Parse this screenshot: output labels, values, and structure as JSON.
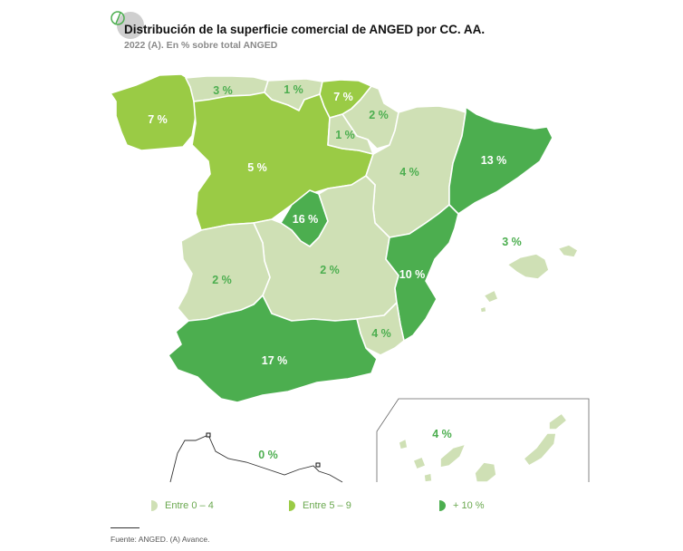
{
  "header": {
    "title": "Distribución de la superficie comercial de ANGED por CC. AA.",
    "subtitle": "2022 (A). En % sobre total ANGED"
  },
  "colors": {
    "light": "#cfe0b5",
    "medium": "#9acb45",
    "dark": "#4cae4f",
    "label_on_light": "#4cae4f",
    "label_on_fill": "#ffffff",
    "border": "#ffffff"
  },
  "regions": {
    "galicia": {
      "value": "7 %",
      "category": "medium"
    },
    "asturias": {
      "value": "3 %",
      "category": "light"
    },
    "cantabria": {
      "value": "1 %",
      "category": "light"
    },
    "pais_vasco": {
      "value": "7 %",
      "category": "medium"
    },
    "navarra": {
      "value": "2 %",
      "category": "light"
    },
    "la_rioja": {
      "value": "1 %",
      "category": "light"
    },
    "castilla_leon": {
      "value": "5 %",
      "category": "medium"
    },
    "aragon": {
      "value": "4 %",
      "category": "light"
    },
    "cataluna": {
      "value": "13 %",
      "category": "dark"
    },
    "madrid": {
      "value": "16 %",
      "category": "dark"
    },
    "castilla_la_mancha": {
      "value": "2 %",
      "category": "light"
    },
    "extremadura": {
      "value": "2 %",
      "category": "light"
    },
    "valencia": {
      "value": "10 %",
      "category": "dark"
    },
    "murcia": {
      "value": "4 %",
      "category": "light"
    },
    "andalucia": {
      "value": "17 %",
      "category": "dark"
    },
    "baleares": {
      "value": "3 %",
      "category": "light"
    },
    "ceuta_melilla": {
      "value": "0 %",
      "category": "light"
    },
    "canarias": {
      "value": "4 %",
      "category": "light"
    }
  },
  "legend": [
    {
      "label": "Entre 0 – 4",
      "category": "light"
    },
    {
      "label": "Entre 5 – 9",
      "category": "medium"
    },
    {
      "label": "+ 10 %",
      "category": "dark"
    }
  ],
  "footer": {
    "source": "Fuente: ANGED. (A) Avance."
  }
}
